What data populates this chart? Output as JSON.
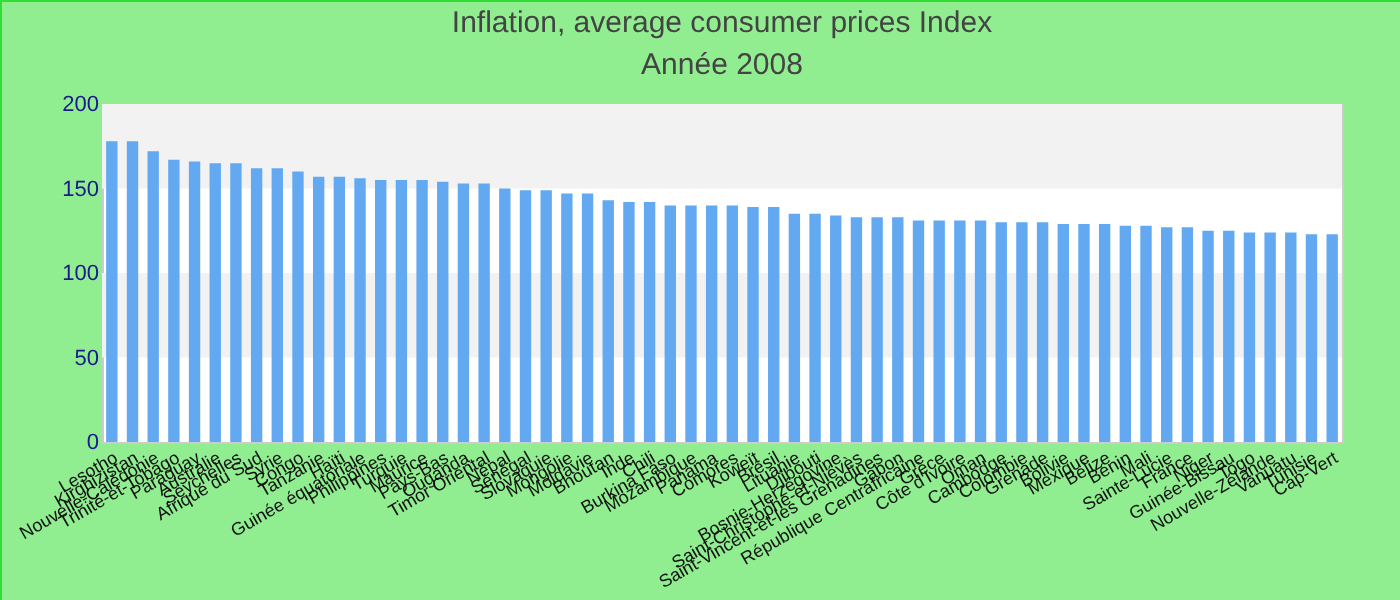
{
  "chart_data": {
    "type": "bar",
    "title": "Inflation, average consumer prices  Index",
    "subtitle": "Année 2008",
    "categories": [
      "Lesotho",
      "Kirghizistan",
      "Nouvelle-Calédonie",
      "Trinité-et-Tobago",
      "Paraguay",
      "Australie",
      "Seychelles",
      "Afrique du Sud",
      "Syrie",
      "Congo",
      "Tanzanie",
      "Haïti",
      "Guinée équatoriale",
      "Philippines",
      "Turquie",
      "Maurice",
      "Pays-Bas",
      "Ouganda",
      "Timor Oriental",
      "Népal",
      "Sénégal",
      "Slovaquie",
      "Mongolie",
      "Moldavie",
      "Bhoutan",
      "Inde",
      "Chili",
      "Burkina Faso",
      "Mozambique",
      "Panama",
      "Comores",
      "Koweït",
      "Brésil",
      "Lituanie",
      "Djibouti",
      "Bosnie-Herzégovine",
      "Saint-Christophe-et-Niévès",
      "Saint-Vincent-et-les Grenadines",
      "Gabon",
      "République Centrafricaine",
      "Grèce",
      "Côte d'Ivoire",
      "Oman",
      "Cambodge",
      "Colombie",
      "Grenade",
      "Bolivie",
      "Mexique",
      "Belize",
      "Bénin",
      "Mali",
      "Sainte-Lucie",
      "France",
      "Niger",
      "Guinée-Bissau",
      "Togo",
      "Nouvelle-Zélande",
      "Vanuatu",
      "Tunisie",
      "Cap-Vert"
    ],
    "values": [
      178,
      178,
      172,
      167,
      166,
      165,
      165,
      162,
      162,
      160,
      157,
      157,
      156,
      155,
      155,
      155,
      154,
      153,
      153,
      150,
      149,
      149,
      147,
      147,
      143,
      142,
      142,
      140,
      140,
      140,
      140,
      139,
      139,
      135,
      135,
      134,
      133,
      133,
      133,
      131,
      131,
      131,
      131,
      130,
      130,
      130,
      129,
      129,
      129,
      128,
      128,
      127,
      127,
      125,
      125,
      124,
      124,
      124,
      123,
      123
    ],
    "color": "#62a9f2",
    "ylim": [
      0,
      200
    ],
    "yticks": [
      0,
      50,
      100,
      150,
      200
    ],
    "bands": [
      {
        "axis": "y",
        "from": 50,
        "to": 100,
        "color": "#f2f2f2"
      },
      {
        "axis": "y",
        "from": 150,
        "to": 200,
        "color": "#f2f2f2"
      }
    ]
  }
}
